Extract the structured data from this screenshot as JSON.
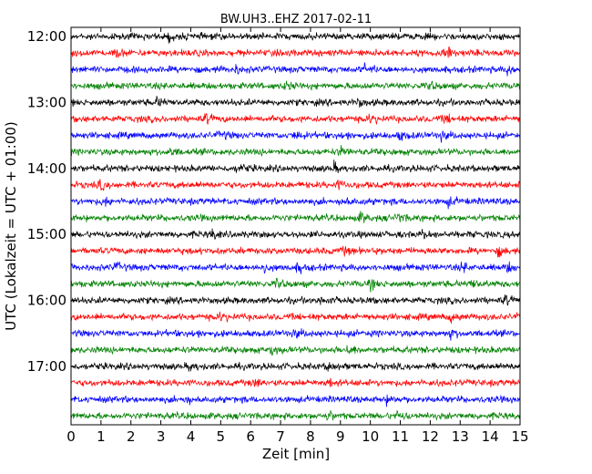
{
  "chart_data": {
    "type": "line",
    "title": "BW.UH3..EHZ 2017-02-11",
    "xlabel": "Zeit  [min]",
    "ylabel": "UTC (Lokalzeit = UTC + 01:00)",
    "xlim": [
      0,
      15
    ],
    "x_ticks": [
      "0",
      "1",
      "2",
      "3",
      "4",
      "5",
      "6",
      "7",
      "8",
      "9",
      "10",
      "11",
      "12",
      "13",
      "14",
      "15"
    ],
    "y_ticks": [
      "12:00",
      "13:00",
      "14:00",
      "15:00",
      "16:00",
      "17:00"
    ],
    "grid": false,
    "trace_interval_minutes": 15,
    "trace_colors": [
      "#000000",
      "#ff0000",
      "#0000ff",
      "#008000"
    ],
    "series": [
      {
        "time": "12:00",
        "color": "#000000",
        "events_min": [
          3.3
        ]
      },
      {
        "time": "12:15",
        "color": "#ff0000",
        "events_min": [
          1.5,
          12.4,
          12.6
        ]
      },
      {
        "time": "12:30",
        "color": "#0000ff",
        "events_min": [
          5.5,
          9.8,
          14.6
        ]
      },
      {
        "time": "12:45",
        "color": "#008000",
        "events_min": [
          7.2,
          12.0
        ]
      },
      {
        "time": "13:00",
        "color": "#000000",
        "events_min": [
          2.9,
          9.6
        ]
      },
      {
        "time": "13:15",
        "color": "#ff0000",
        "events_min": [
          4.5,
          10.0,
          12.5
        ]
      },
      {
        "time": "13:30",
        "color": "#0000ff",
        "events_min": [
          5.0,
          7.5,
          9.1,
          11.0,
          12.4
        ]
      },
      {
        "time": "13:45",
        "color": "#008000",
        "events_min": [
          3.3,
          9.0
        ]
      },
      {
        "time": "14:00",
        "color": "#000000",
        "events_min": [
          5.6,
          8.8
        ]
      },
      {
        "time": "14:15",
        "color": "#ff0000",
        "events_min": [
          1.0,
          8.9
        ]
      },
      {
        "time": "14:30",
        "color": "#0000ff",
        "events_min": [
          1.1,
          9.1,
          12.6
        ]
      },
      {
        "time": "14:45",
        "color": "#008000",
        "events_min": [
          9.7,
          10.9
        ]
      },
      {
        "time": "15:00",
        "color": "#000000",
        "events_min": [
          4.7,
          11.7
        ]
      },
      {
        "time": "15:15",
        "color": "#ff0000",
        "events_min": [
          9.1,
          14.3
        ]
      },
      {
        "time": "15:30",
        "color": "#0000ff",
        "events_min": [
          1.5,
          6.4,
          7.6,
          13.1,
          14.6
        ]
      },
      {
        "time": "15:45",
        "color": "#008000",
        "events_min": [
          6.9,
          10.0,
          13.4
        ]
      },
      {
        "time": "16:00",
        "color": "#000000",
        "events_min": [
          8.4,
          14.5
        ]
      },
      {
        "time": "16:15",
        "color": "#ff0000",
        "events_min": [
          5.0,
          12.7
        ]
      },
      {
        "time": "16:30",
        "color": "#0000ff",
        "events_min": [
          4.1,
          7.5,
          12.7
        ]
      },
      {
        "time": "16:45",
        "color": "#008000",
        "events_min": [
          6.7,
          9.3
        ]
      },
      {
        "time": "17:00",
        "color": "#000000",
        "events_min": [
          4.0,
          8.6
        ]
      },
      {
        "time": "17:15",
        "color": "#ff0000",
        "events_min": [
          6.1,
          8.6
        ]
      },
      {
        "time": "17:30",
        "color": "#0000ff",
        "events_min": [
          3.8,
          10.6
        ]
      },
      {
        "time": "17:45",
        "color": "#008000",
        "events_min": [
          8.6,
          10.9
        ]
      }
    ]
  }
}
